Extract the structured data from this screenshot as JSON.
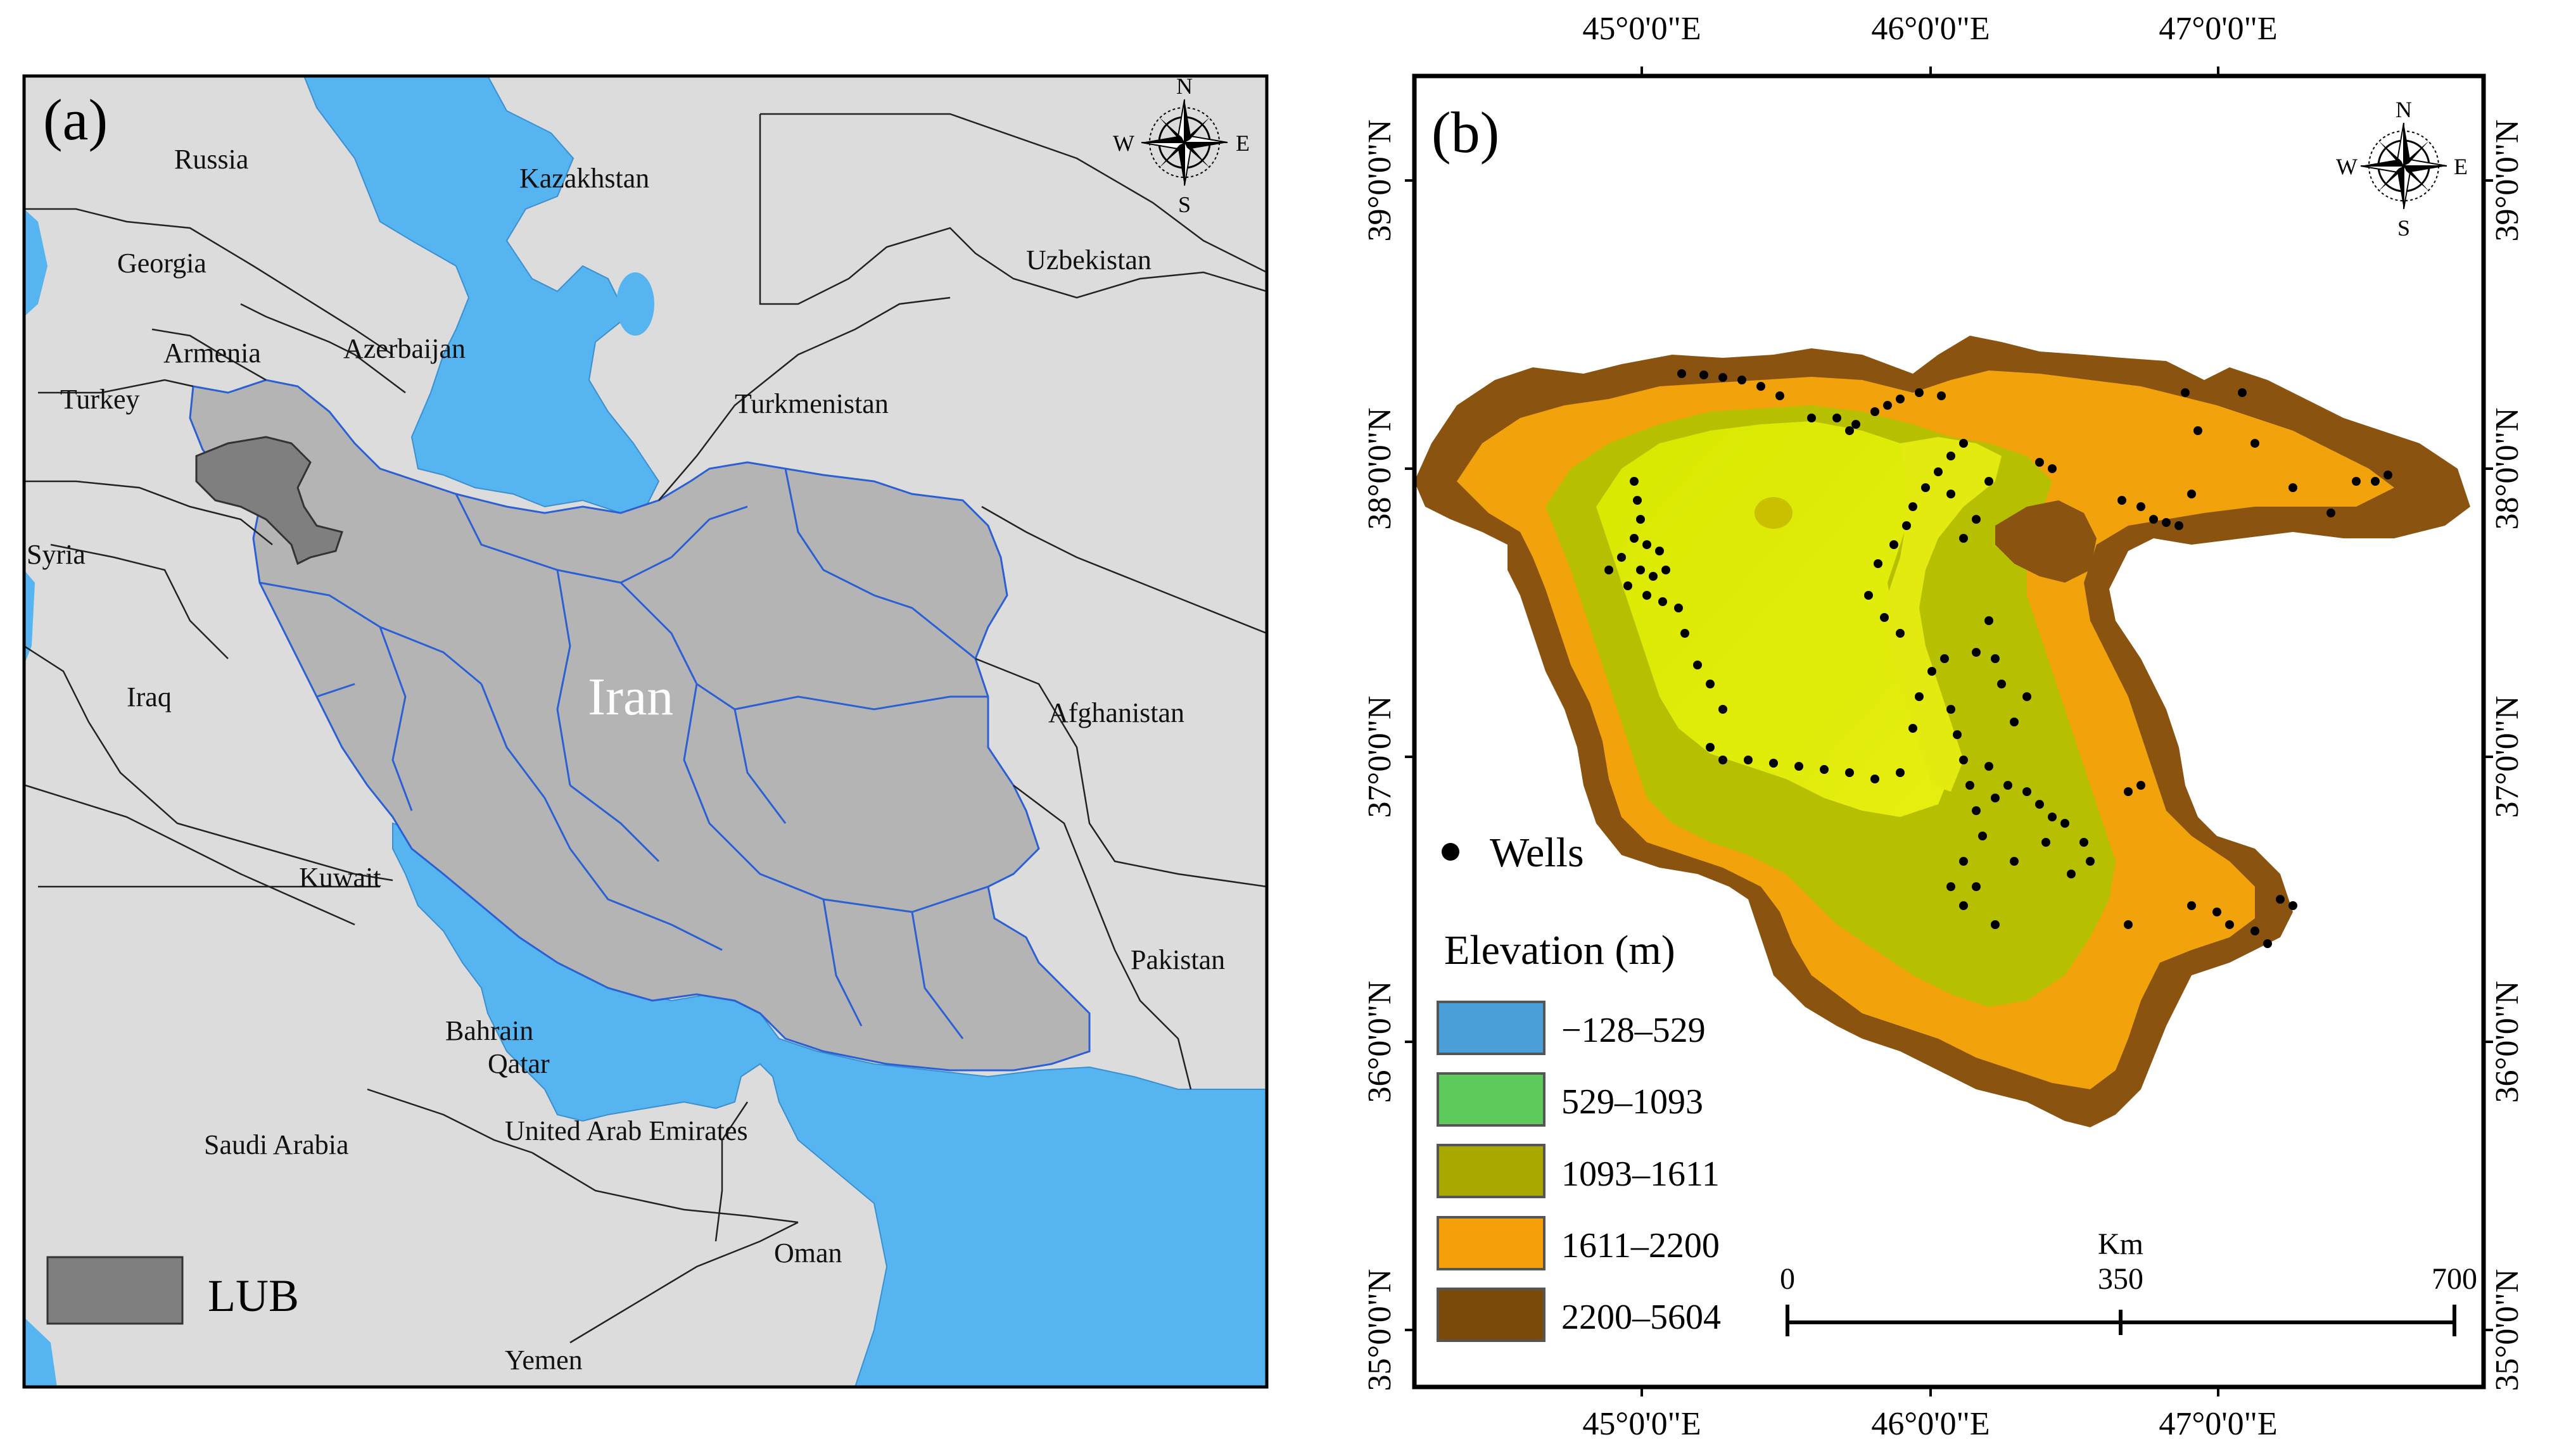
{
  "panel_a": {
    "label": "(a)",
    "countries": [
      {
        "name": "Russia"
      },
      {
        "name": "Kazakhstan"
      },
      {
        "name": "Georgia"
      },
      {
        "name": "Uzbekistan"
      },
      {
        "name": "Armenia"
      },
      {
        "name": "Azerbaijan"
      },
      {
        "name": "Turkey"
      },
      {
        "name": "Turkmenistan"
      },
      {
        "name": "Syria"
      },
      {
        "name": "Iraq"
      },
      {
        "name": "Afghanistan"
      },
      {
        "name": "Kuwait"
      },
      {
        "name": "Pakistan"
      },
      {
        "name": "Bahrain"
      },
      {
        "name": "Qatar"
      },
      {
        "name": "Saudi Arabia"
      },
      {
        "name": "United Arab Emirates"
      },
      {
        "name": "Oman"
      },
      {
        "name": "Yemen"
      }
    ],
    "main_label": "Iran",
    "legend_label": "LUB",
    "compass": {
      "n": "N",
      "s": "S",
      "e": "E",
      "w": "W"
    },
    "colors": {
      "water": "#56b4f0",
      "land": "#dcdcdc",
      "iran": "#b4b4b4",
      "lub": "#7f7f7f",
      "basins": "#2a60d4"
    }
  },
  "panel_b": {
    "label": "(b)",
    "lon_ticks": [
      "45°0'0\"E",
      "46°0'0\"E",
      "47°0'0\"E"
    ],
    "lat_ticks": [
      "39°0'0\"N",
      "38°0'0\"N",
      "37°0'0\"N",
      "36°0'0\"N",
      "35°0'0\"N"
    ],
    "wells_label": "Wells",
    "elevation_title": "Elevation (m)",
    "elevation_classes": [
      {
        "range": "−128–529",
        "color": "#4a9fd8"
      },
      {
        "range": "529–1093",
        "color": "#5ccb5c"
      },
      {
        "range": "1093–1611",
        "color": "#a8a800"
      },
      {
        "range": "1611–2200",
        "color": "#f5a00a"
      },
      {
        "range": "2200–5604",
        "color": "#7a4a0a"
      }
    ],
    "scale": {
      "unit": "Km",
      "ticks": [
        "0",
        "350",
        "700"
      ]
    },
    "compass": {
      "n": "N",
      "s": "S",
      "e": "E",
      "w": "W"
    }
  }
}
